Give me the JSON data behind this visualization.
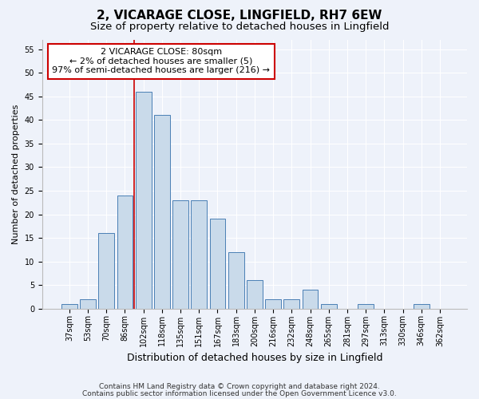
{
  "title": "2, VICARAGE CLOSE, LINGFIELD, RH7 6EW",
  "subtitle": "Size of property relative to detached houses in Lingfield",
  "xlabel": "Distribution of detached houses by size in Lingfield",
  "ylabel": "Number of detached properties",
  "categories": [
    "37sqm",
    "53sqm",
    "70sqm",
    "86sqm",
    "102sqm",
    "118sqm",
    "135sqm",
    "151sqm",
    "167sqm",
    "183sqm",
    "200sqm",
    "216sqm",
    "232sqm",
    "248sqm",
    "265sqm",
    "281sqm",
    "297sqm",
    "313sqm",
    "330sqm",
    "346sqm",
    "362sqm"
  ],
  "values": [
    1,
    2,
    16,
    24,
    46,
    41,
    23,
    23,
    19,
    12,
    6,
    2,
    2,
    4,
    1,
    0,
    1,
    0,
    0,
    1,
    0
  ],
  "bar_color": "#c9daea",
  "bar_edge_color": "#4a7fb5",
  "bar_edge_width": 0.7,
  "vline_color": "#cc0000",
  "vline_x_index": 3.5,
  "annotation_line1": "2 VICARAGE CLOSE: 80sqm",
  "annotation_line2": "← 2% of detached houses are smaller (5)",
  "annotation_line3": "97% of semi-detached houses are larger (216) →",
  "annotation_box_facecolor": "#ffffff",
  "annotation_box_edgecolor": "#cc0000",
  "ylim": [
    0,
    57
  ],
  "yticks": [
    0,
    5,
    10,
    15,
    20,
    25,
    30,
    35,
    40,
    45,
    50,
    55
  ],
  "footer_line1": "Contains HM Land Registry data © Crown copyright and database right 2024.",
  "footer_line2": "Contains public sector information licensed under the Open Government Licence v3.0.",
  "bg_color": "#eef2fa",
  "grid_color": "#ffffff",
  "title_fontsize": 11,
  "subtitle_fontsize": 9.5,
  "ylabel_fontsize": 8,
  "xlabel_fontsize": 9,
  "tick_fontsize": 7,
  "annotation_fontsize": 8,
  "footer_fontsize": 6.5
}
